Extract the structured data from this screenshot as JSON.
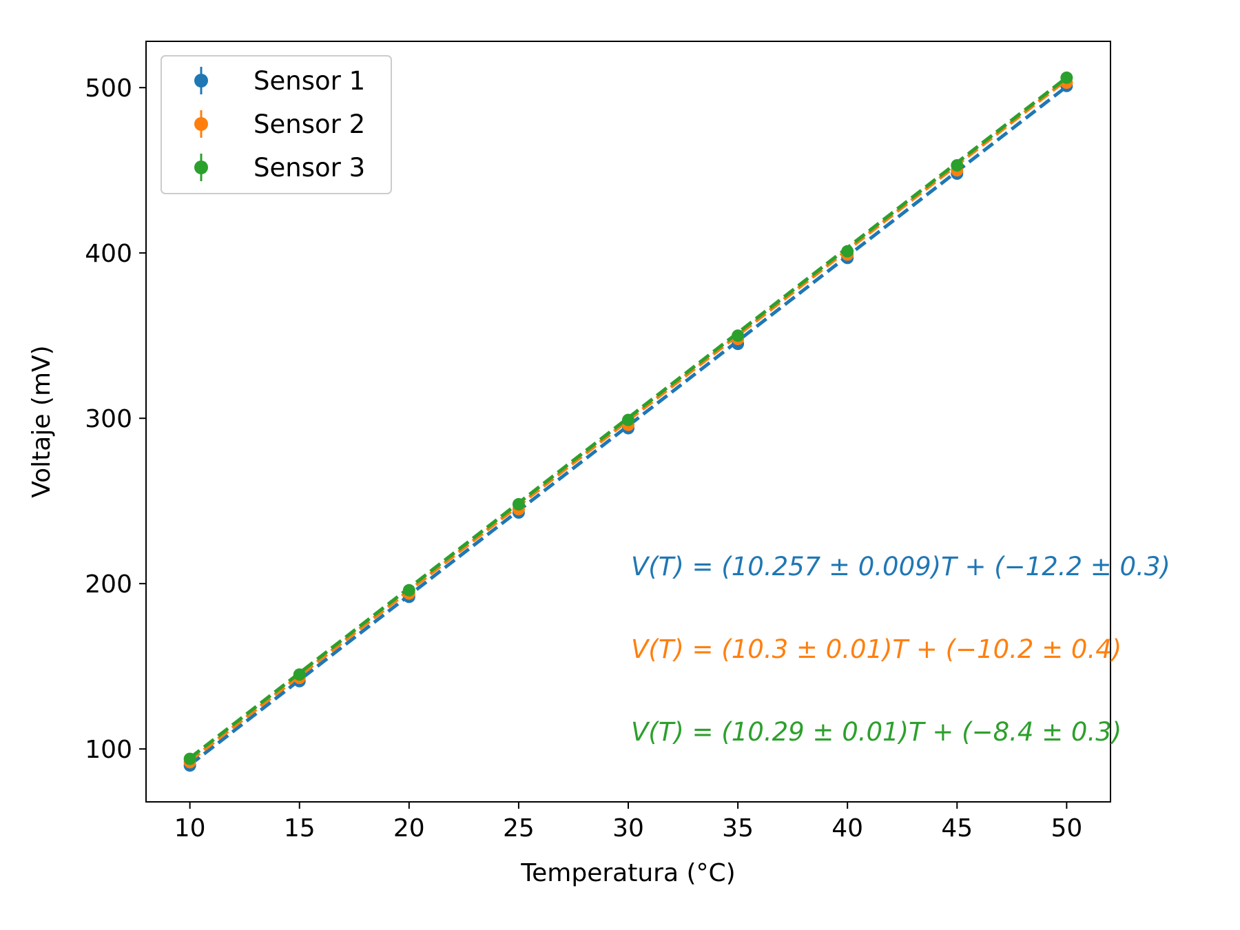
{
  "chart_data": {
    "type": "scatter",
    "xlabel": "Temperatura ($^\\circ$C)",
    "xlabel_display": "Temperatura (°C)",
    "ylabel": "Voltaje (mV)",
    "xlim": [
      8,
      52
    ],
    "ylim": [
      68,
      528
    ],
    "xticks": [
      10,
      15,
      20,
      25,
      30,
      35,
      40,
      45,
      50
    ],
    "yticks": [
      100,
      200,
      300,
      400,
      500
    ],
    "x": [
      10,
      15,
      20,
      25,
      30,
      35,
      40,
      45,
      50
    ],
    "legend_position": "top-left",
    "series": [
      {
        "name": "Sensor 1",
        "color": "#1f77b4",
        "values": [
          90,
          141,
          192,
          243,
          294,
          345,
          397,
          448,
          501
        ],
        "fit": {
          "slope": 10.257,
          "intercept": -12.2
        },
        "annotation": "V(T) = (10.257 ± 0.009)T + (−12.2 ± 0.3)"
      },
      {
        "name": "Sensor 2",
        "color": "#ff7f0e",
        "values": [
          92,
          143,
          194,
          245,
          296,
          348,
          399,
          450,
          503
        ],
        "fit": {
          "slope": 10.3,
          "intercept": -10.2
        },
        "annotation": "V(T) = (10.3 ± 0.01)T + (−10.2 ± 0.4)"
      },
      {
        "name": "Sensor 3",
        "color": "#2ca02c",
        "values": [
          94,
          145,
          196,
          248,
          299,
          350,
          401,
          453,
          506
        ],
        "fit": {
          "slope": 10.29,
          "intercept": -8.4
        },
        "annotation": "V(T) = (10.29 ± 0.01)T + (−8.4 ± 0.3)"
      }
    ]
  }
}
